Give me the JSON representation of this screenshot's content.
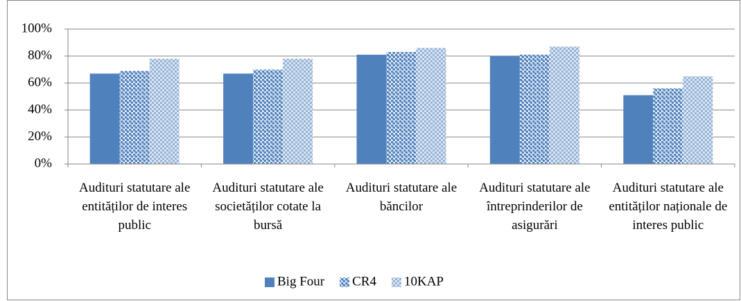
{
  "chart_data": {
    "type": "bar",
    "categories": [
      "Audituri statutare ale entităților de interes public",
      "Audituri statutare ale societăților cotate la bursă",
      "Audituri statutare ale băncilor",
      "Audituri statutare ale întreprinderilor de asigurări",
      "Audituri statutare ale entităților naționale de interes public"
    ],
    "series": [
      {
        "name": "Big Four",
        "color": "#4f81bd",
        "values": [
          67,
          67,
          81,
          80,
          51
        ]
      },
      {
        "name": "CR4",
        "color": "#4f81bd",
        "values": [
          69,
          70,
          83,
          81,
          56
        ]
      },
      {
        "name": "10KAP",
        "color": "#95b3d7",
        "values": [
          78,
          78,
          86,
          87,
          65
        ]
      }
    ],
    "ylim": [
      0,
      100
    ],
    "yticks": [
      {
        "value": 0,
        "label": "0%"
      },
      {
        "value": 20,
        "label": "20%"
      },
      {
        "value": 40,
        "label": "40%"
      },
      {
        "value": 60,
        "label": "60%"
      },
      {
        "value": 80,
        "label": "80%"
      },
      {
        "value": 100,
        "label": "100%"
      }
    ],
    "grid": true,
    "legend": "bottom"
  }
}
